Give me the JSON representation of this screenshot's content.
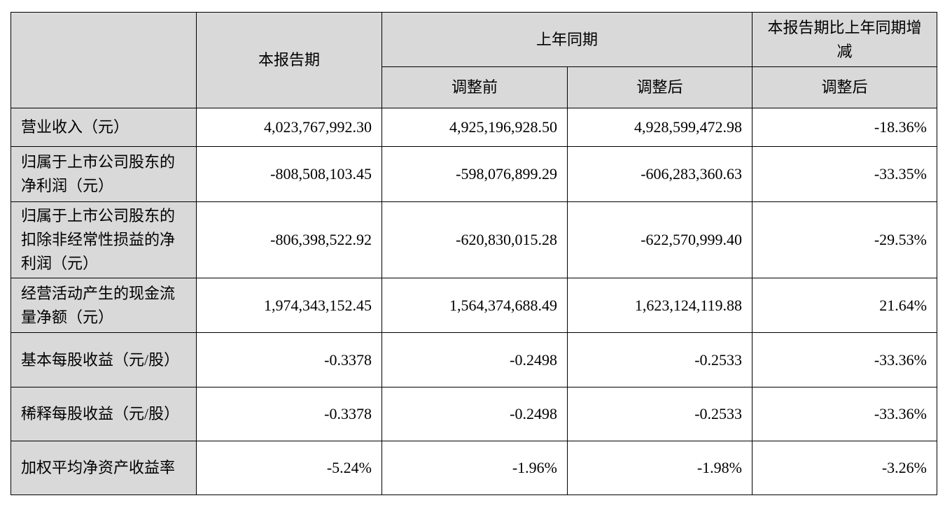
{
  "table": {
    "header": {
      "current": "本报告期",
      "last_year": "上年同期",
      "change": "本报告期比上年同期增减",
      "sub": [
        "调整前",
        "调整后",
        "调整后"
      ]
    },
    "rows": [
      [
        "营业收入（元）",
        "4,023,767,992.30",
        "4,925,196,928.50",
        "4,928,599,472.98",
        "-18.36%"
      ],
      [
        "归属于上市公司股东的净利润（元）",
        "-808,508,103.45",
        "-598,076,899.29",
        "-606,283,360.63",
        "-33.35%"
      ],
      [
        "归属于上市公司股东的扣除非经常性损益的净利润（元）",
        "-806,398,522.92",
        "-620,830,015.28",
        "-622,570,999.40",
        "-29.53%"
      ],
      [
        "经营活动产生的现金流量净额（元）",
        "1,974,343,152.45",
        "1,564,374,688.49",
        "1,623,124,119.88",
        "21.64%"
      ],
      [
        "基本每股收益（元/股）",
        "-0.3378",
        "-0.2498",
        "-0.2533",
        "-33.36%"
      ],
      [
        "稀释每股收益（元/股）",
        "-0.3378",
        "-0.2498",
        "-0.2533",
        "-33.36%"
      ],
      [
        "加权平均净资产收益率",
        "-5.24%",
        "-1.96%",
        "-1.98%",
        "-3.26%"
      ]
    ]
  }
}
